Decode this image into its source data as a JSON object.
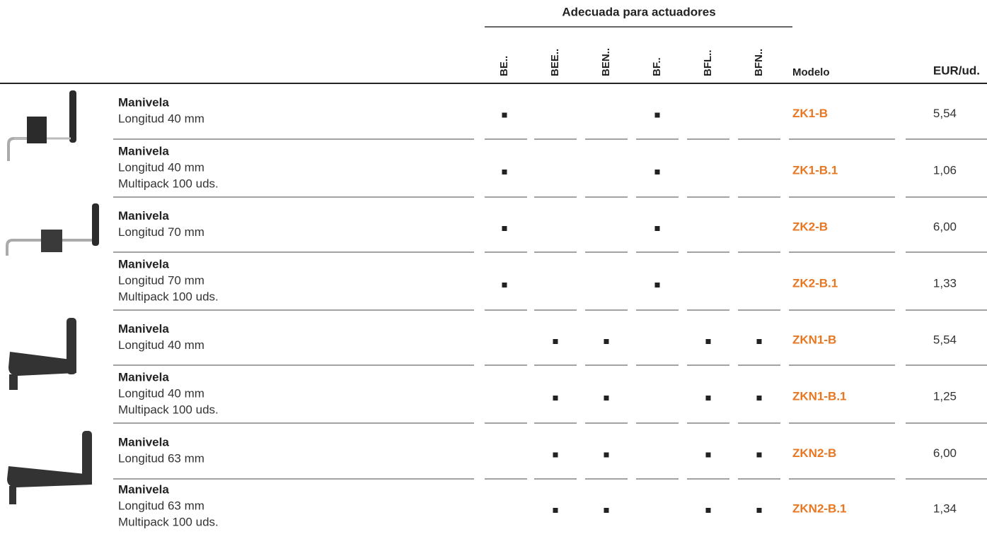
{
  "header": {
    "group_title": "Adecuada para actuadores",
    "actuator_columns": [
      "BE..",
      "BEE..",
      "BEN..",
      "BF..",
      "BFL..",
      "BFN.."
    ],
    "model_header": "Modelo",
    "price_header": "EUR/ud."
  },
  "rows": [
    {
      "title": "Manivela",
      "lines": [
        "Longitud 40 mm"
      ],
      "actuators": [
        true,
        false,
        false,
        true,
        false,
        false
      ],
      "model": "ZK1-B",
      "price": "5,54"
    },
    {
      "title": "Manivela",
      "lines": [
        "Longitud 40 mm",
        "Multipack 100 uds."
      ],
      "actuators": [
        true,
        false,
        false,
        true,
        false,
        false
      ],
      "model": "ZK1-B.1",
      "price": "1,06"
    },
    {
      "title": "Manivela",
      "lines": [
        "Longitud 70 mm"
      ],
      "actuators": [
        true,
        false,
        false,
        true,
        false,
        false
      ],
      "model": "ZK2-B",
      "price": "6,00"
    },
    {
      "title": "Manivela",
      "lines": [
        "Longitud 70 mm",
        "Multipack 100 uds."
      ],
      "actuators": [
        true,
        false,
        false,
        true,
        false,
        false
      ],
      "model": "ZK2-B.1",
      "price": "1,33"
    },
    {
      "title": "Manivela",
      "lines": [
        "Longitud 40 mm"
      ],
      "actuators": [
        false,
        true,
        true,
        false,
        true,
        true
      ],
      "model": "ZKN1-B",
      "price": "5,54"
    },
    {
      "title": "Manivela",
      "lines": [
        "Longitud 40 mm",
        "Multipack 100 uds."
      ],
      "actuators": [
        false,
        true,
        true,
        false,
        true,
        true
      ],
      "model": "ZKN1-B.1",
      "price": "1,25"
    },
    {
      "title": "Manivela",
      "lines": [
        "Longitud 63 mm"
      ],
      "actuators": [
        false,
        true,
        true,
        false,
        true,
        true
      ],
      "model": "ZKN2-B",
      "price": "6,00"
    },
    {
      "title": "Manivela",
      "lines": [
        "Longitud 63 mm",
        "Multipack 100 uds."
      ],
      "actuators": [
        false,
        true,
        true,
        false,
        true,
        true
      ],
      "model": "ZKN2-B.1",
      "price": "1,34"
    }
  ]
}
